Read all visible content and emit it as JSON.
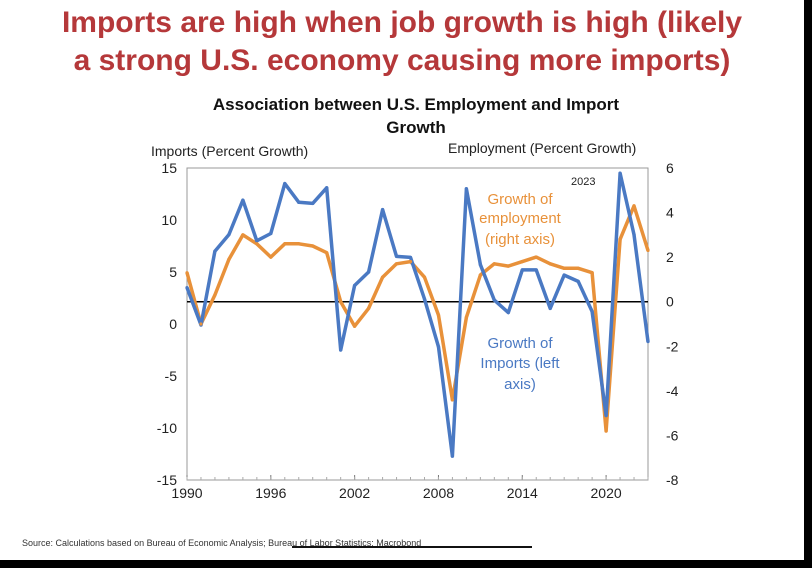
{
  "headline": {
    "line1": "Imports are high when job growth is high (likely",
    "line2": "a strong U.S. economy causing more imports)"
  },
  "source": "Source: Calculations based on Bureau of Economic Analysis; Bureau of Labor Statistics; Macrobond",
  "chart_data": {
    "type": "line",
    "title_line1": "Association  between U.S. Employment  and Import",
    "title_line2": "Growth",
    "ylabel_left": "Imports (Percent Growth)",
    "ylabel_right": "Employment (Percent Growth)",
    "xlim": [
      1990,
      2023
    ],
    "ylim_left": [
      -15,
      15
    ],
    "ylim_right": [
      -8,
      6
    ],
    "x_ticks": [
      "1990",
      "1996",
      "2002",
      "2008",
      "2014",
      "2020"
    ],
    "y_left_ticks": [
      "15",
      "10",
      "5",
      "0",
      "-5",
      "-10",
      "-15"
    ],
    "y_right_ticks": [
      "6",
      "4",
      "2",
      "0",
      "-2",
      "-4",
      "-6",
      "-8"
    ],
    "annotations": {
      "year_marker": "2023",
      "employment_line1": "Growth of",
      "employment_line2": "employment",
      "employment_line3": "(right axis)",
      "imports_line1": "Growth of",
      "imports_line2": "Imports (left",
      "imports_line3": "axis)"
    },
    "colors": {
      "imports": "#4a79c3",
      "employment": "#e8913a"
    },
    "series": [
      {
        "axis": "left",
        "x": [
          1990,
          1991,
          1992,
          1993,
          1994,
          1995,
          1996,
          1997,
          1998,
          1999,
          2000,
          2001,
          2002,
          2003,
          2004,
          2005,
          2006,
          2007,
          2008,
          2009,
          2010,
          2011,
          2012,
          2013,
          2014,
          2015,
          2016,
          2017,
          2018,
          2019,
          2020,
          2021,
          2022,
          2023
        ],
        "values": [
          3.5,
          -0.1,
          7,
          8.6,
          11.9,
          8,
          8.7,
          13.5,
          11.7,
          11.6,
          13.1,
          -2.5,
          3.7,
          5,
          11,
          6.5,
          6.4,
          2.4,
          -2.2,
          -12.7,
          13,
          5.7,
          2.3,
          1.1,
          5.2,
          5.2,
          1.5,
          4.7,
          4.1,
          1.2,
          -8.8,
          14.5,
          8.6,
          -1.7
        ]
      },
      {
        "axis": "right",
        "x": [
          1990,
          1991,
          1992,
          1993,
          1994,
          1995,
          1996,
          1997,
          1998,
          1999,
          2000,
          2001,
          2002,
          2003,
          2004,
          2005,
          2006,
          2007,
          2008,
          2009,
          2010,
          2011,
          2012,
          2013,
          2014,
          2015,
          2016,
          2017,
          2018,
          2019,
          2020,
          2021,
          2022,
          2023
        ],
        "values": [
          1.3,
          -1.0,
          0.3,
          1.9,
          3.0,
          2.6,
          2.0,
          2.6,
          2.6,
          2.5,
          2.2,
          0.0,
          -1.1,
          -0.3,
          1.1,
          1.7,
          1.8,
          1.1,
          -0.6,
          -4.4,
          -0.7,
          1.2,
          1.7,
          1.6,
          1.8,
          2.0,
          1.7,
          1.5,
          1.5,
          1.3,
          -5.8,
          2.8,
          4.3,
          2.3
        ]
      }
    ]
  }
}
